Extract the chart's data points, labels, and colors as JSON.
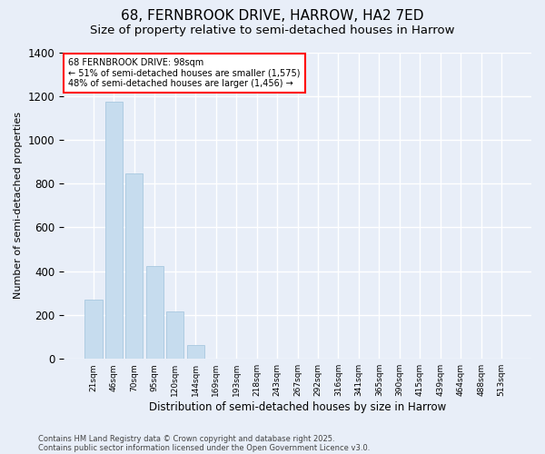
{
  "title_line1": "68, FERNBROOK DRIVE, HARROW, HA2 7ED",
  "title_line2": "Size of property relative to semi-detached houses in Harrow",
  "xlabel": "Distribution of semi-detached houses by size in Harrow",
  "ylabel": "Number of semi-detached properties",
  "annotation_title": "68 FERNBROOK DRIVE: 98sqm",
  "annotation_line2": "← 51% of semi-detached houses are smaller (1,575)",
  "annotation_line3": "48% of semi-detached houses are larger (1,456) →",
  "footer_line1": "Contains HM Land Registry data © Crown copyright and database right 2025.",
  "footer_line2": "Contains public sector information licensed under the Open Government Licence v3.0.",
  "categories": [
    "21sqm",
    "46sqm",
    "70sqm",
    "95sqm",
    "120sqm",
    "144sqm",
    "169sqm",
    "193sqm",
    "218sqm",
    "243sqm",
    "267sqm",
    "292sqm",
    "316sqm",
    "341sqm",
    "365sqm",
    "390sqm",
    "415sqm",
    "439sqm",
    "464sqm",
    "488sqm",
    "513sqm"
  ],
  "values": [
    270,
    1175,
    845,
    425,
    215,
    65,
    0,
    0,
    0,
    0,
    0,
    0,
    0,
    0,
    0,
    0,
    0,
    0,
    0,
    0,
    0
  ],
  "bar_color": "#c6dcee",
  "bar_edgecolor": "#a8c8e0",
  "background_color": "#e8eef8",
  "plot_background": "#e8eef8",
  "ylim": [
    0,
    1400
  ],
  "yticks": [
    0,
    200,
    400,
    600,
    800,
    1000,
    1200,
    1400
  ],
  "grid_color": "#ffffff",
  "title_fontsize": 11,
  "subtitle_fontsize": 9.5
}
